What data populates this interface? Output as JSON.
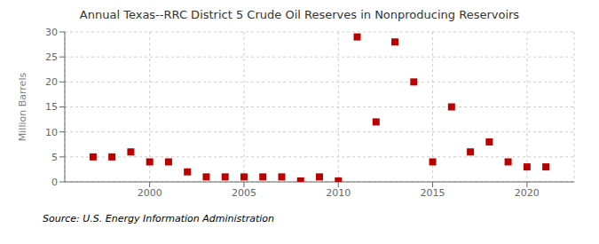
{
  "chart_data": {
    "type": "scatter",
    "title": "Annual Texas--RRC District 5 Crude Oil Reserves in Nonproducing Reservoirs",
    "y_label": "Million Barrels",
    "annotations": [
      "Source: U.S. Energy Information Administration"
    ],
    "x": [
      1997,
      1998,
      1999,
      2000,
      2001,
      2002,
      2003,
      2004,
      2005,
      2006,
      2007,
      2008,
      2009,
      2010,
      2011,
      2012,
      2013,
      2014,
      2015,
      2016,
      2017,
      2018,
      2019,
      2020,
      2021
    ],
    "values": [
      5.0,
      5.0,
      6.0,
      4.0,
      4.0,
      2.0,
      1.0,
      1.0,
      1.0,
      1.0,
      1.0,
      0.2,
      1.0,
      0.2,
      29.0,
      12.0,
      28.0,
      20.0,
      4.0,
      15.0,
      6.0,
      8.0,
      4.0,
      3.0,
      3.0
    ],
    "color": "#bb0000",
    "marker": "square",
    "xlim": [
      1995.5,
      2022.5
    ],
    "ylim": [
      0,
      30
    ],
    "xticks": [
      2000,
      2005,
      2010,
      2015,
      2020
    ],
    "yticks": [
      0,
      5,
      10,
      15,
      20,
      25,
      30
    ],
    "grid": true
  }
}
